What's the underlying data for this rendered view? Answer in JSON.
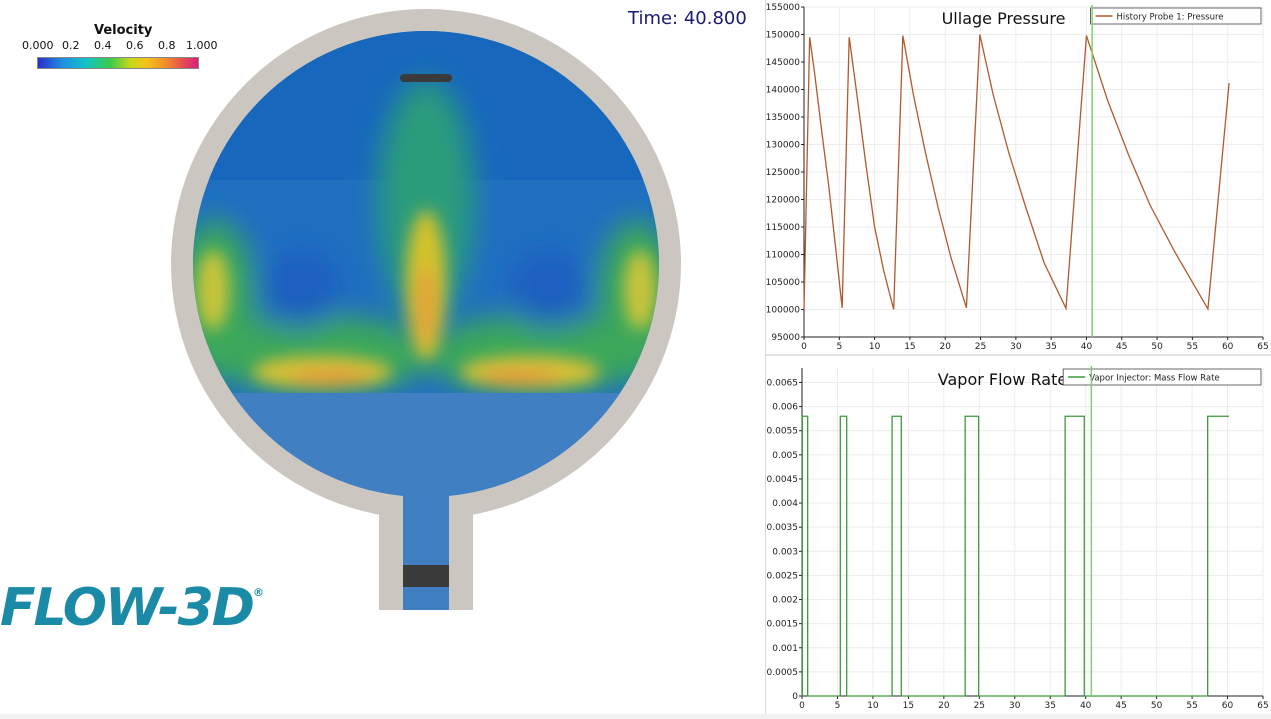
{
  "simulation": {
    "time_label": "Time: 40.800",
    "legend": {
      "title": "Velocity",
      "ticks": [
        "0.000",
        "0.2",
        "0.4",
        "0.6",
        "0.8",
        "1.000"
      ]
    },
    "logo": "FLOW-3D",
    "logo_mark": "®"
  },
  "chart_data": [
    {
      "type": "line",
      "title": "Ullage Pressure",
      "xlim": [
        0,
        65
      ],
      "ylim": [
        95000,
        155000
      ],
      "xticks": [
        0,
        5,
        10,
        15,
        20,
        25,
        30,
        35,
        40,
        45,
        50,
        55,
        60,
        65
      ],
      "yticks": [
        95000,
        100000,
        105000,
        110000,
        115000,
        120000,
        125000,
        130000,
        135000,
        140000,
        145000,
        150000,
        155000
      ],
      "grid": true,
      "legend_placement": "top-right",
      "marker_x": 40.8,
      "series": [
        {
          "name": "History Probe 1: Pressure",
          "color": "#b05a2e",
          "x": [
            0,
            0.8,
            1.5,
            2.5,
            3.5,
            4.5,
            5.4,
            6.4,
            7.5,
            8.7,
            10,
            11.3,
            12.7,
            14.0,
            15.5,
            17.2,
            19,
            20.8,
            23.0,
            24.9,
            26.8,
            29,
            31.3,
            34,
            37.1,
            40.0,
            43,
            46,
            49,
            52.5,
            57.2,
            60.2
          ],
          "values": [
            100000,
            149500,
            143000,
            132500,
            122500,
            111000,
            100300,
            149500,
            139000,
            127000,
            115000,
            107000,
            100000,
            149800,
            139000,
            128500,
            118500,
            109500,
            100300,
            150000,
            139000,
            128500,
            119000,
            108500,
            100200,
            149800,
            138000,
            128000,
            119000,
            110500,
            100100,
            141200
          ]
        }
      ]
    },
    {
      "type": "line",
      "title": "Vapor Flow Rate",
      "xlim": [
        0,
        65
      ],
      "ylim": [
        0,
        0.0068
      ],
      "xticks": [
        0,
        5,
        10,
        15,
        20,
        25,
        30,
        35,
        40,
        45,
        50,
        55,
        60,
        65
      ],
      "yticks": [
        0,
        0.0005,
        0.001,
        0.0015,
        0.002,
        0.0025,
        0.003,
        0.0035,
        0.004,
        0.0045,
        0.005,
        0.0055,
        0.006,
        0.0065
      ],
      "ytick_labels": [
        "0",
        "0.0005",
        "0.001",
        "0.0015",
        "0.002",
        "0.0025",
        "0.003",
        "0.0035",
        "0.004",
        "0.0045",
        "0.005",
        "0.0055",
        "0.006",
        "0.0065"
      ],
      "grid": true,
      "legend_placement": "top-right",
      "marker_x": 40.8,
      "series": [
        {
          "name": "Vapor Injector: Mass Flow Rate",
          "color": "#3c9a3c",
          "x": [
            0,
            0.05,
            0.05,
            0.8,
            0.8,
            5.4,
            5.4,
            6.3,
            6.3,
            12.7,
            12.7,
            14.0,
            14.0,
            23.0,
            23.0,
            24.9,
            24.9,
            37.1,
            37.1,
            39.8,
            39.8,
            57.2,
            57.2,
            60.2
          ],
          "values": [
            0,
            0,
            0.0058,
            0.0058,
            0,
            0,
            0.0058,
            0.0058,
            0,
            0,
            0.0058,
            0.0058,
            0,
            0,
            0.0058,
            0.0058,
            0,
            0,
            0.0058,
            0.0058,
            0,
            0,
            0.0058,
            0.0058
          ]
        }
      ]
    }
  ]
}
